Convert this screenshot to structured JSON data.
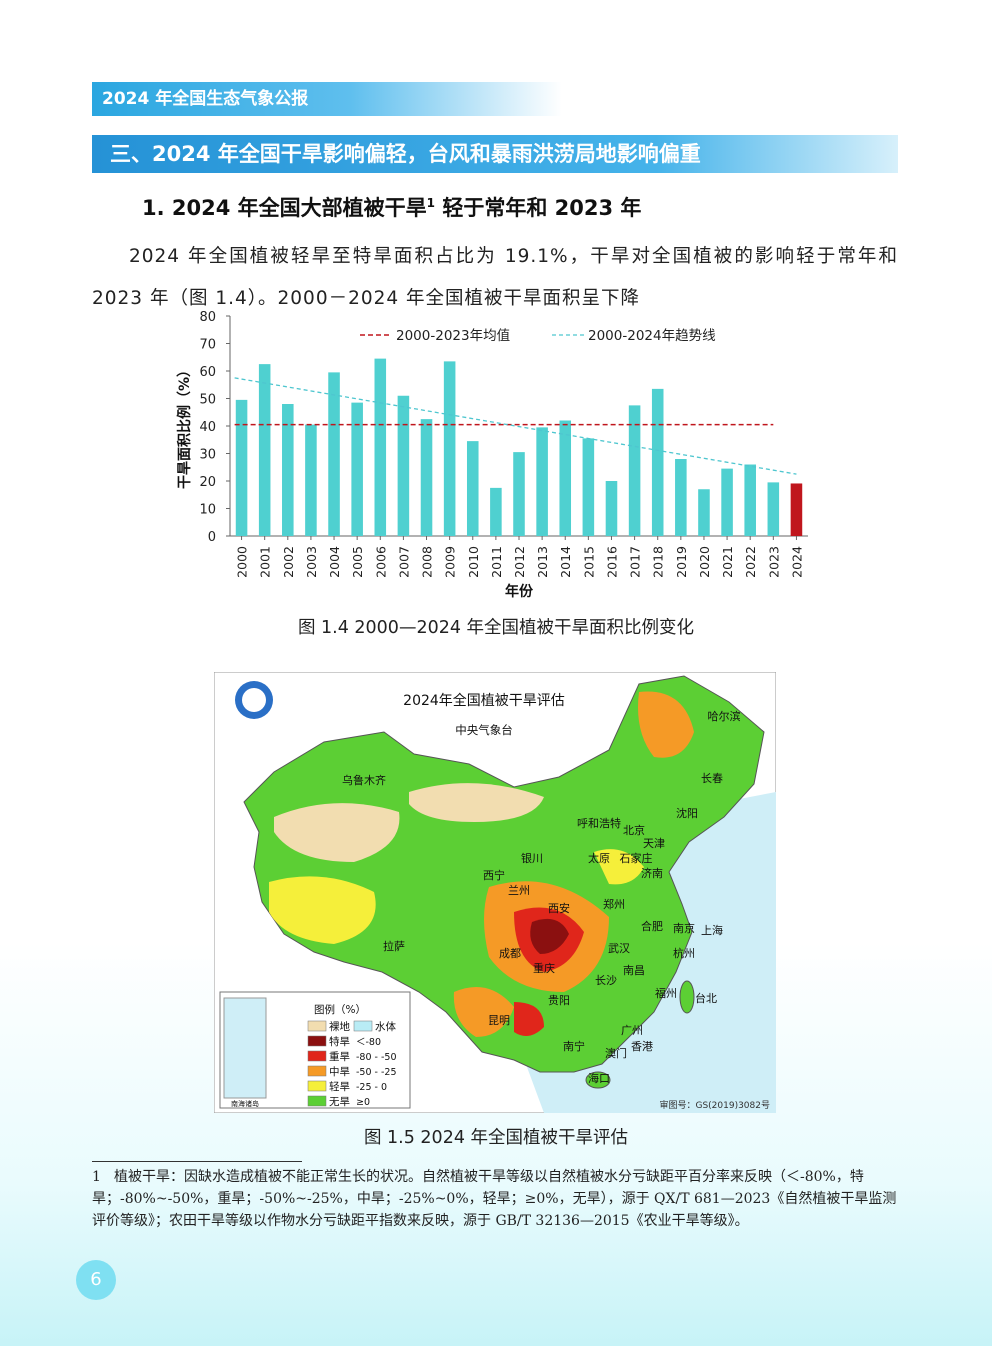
{
  "header": {
    "title": "2024 年全国生态气象公报"
  },
  "section": {
    "title": "三、2024 年全国干旱影响偏轻，台风和暴雨洪涝局地影响偏重"
  },
  "subsection": {
    "title": "1. 2024 年全国大部植被干旱",
    "sup": "1",
    "title_tail": " 轻于常年和 2023 年"
  },
  "paragraph": {
    "text": "2024 年全国植被轻旱至特旱面积占比为 19.1%，干旱对全国植被的影响轻于常年和 2023 年（图 1.4）。2000－2024 年全国植被干旱面积呈下降"
  },
  "chart_data": {
    "type": "bar",
    "categories": [
      "2000",
      "2001",
      "2002",
      "2003",
      "2004",
      "2005",
      "2006",
      "2007",
      "2008",
      "2009",
      "2010",
      "2011",
      "2012",
      "2013",
      "2014",
      "2015",
      "2016",
      "2017",
      "2018",
      "2019",
      "2020",
      "2021",
      "2022",
      "2023",
      "2024"
    ],
    "values": [
      49.5,
      62.5,
      48,
      40.5,
      59.5,
      48.5,
      64.5,
      51,
      42.5,
      63.5,
      34.5,
      17.5,
      30.5,
      39.5,
      42,
      35.5,
      20,
      47.5,
      53.5,
      28,
      17,
      24.5,
      26,
      19.5,
      19.1
    ],
    "ylabel": "干旱面积比例（%）",
    "xlabel": "年份",
    "ylim": [
      0,
      80
    ],
    "yticks": [
      0,
      10,
      20,
      30,
      40,
      50,
      60,
      70,
      80
    ],
    "mean_line": {
      "name": "2000-2023年均值",
      "value": 40.5,
      "color": "#c0161d"
    },
    "trend_line": {
      "name": "2000-2024年趋势线",
      "start": 57.5,
      "end": 22.5,
      "color": "#4ec6cf"
    },
    "bar_color": "#4fd0d0",
    "highlight_color": "#c0161d",
    "highlight_index": 24
  },
  "figure14": {
    "caption": "图 1.4  2000—2024 年全国植被干旱面积比例变化"
  },
  "map": {
    "title": "2024年全国植被干旱评估",
    "subtitle": "中央气象台",
    "cities": [
      {
        "name": "哈尔滨"
      },
      {
        "name": "长春"
      },
      {
        "name": "乌鲁木齐"
      },
      {
        "name": "呼和浩特"
      },
      {
        "name": "北京"
      },
      {
        "name": "沈阳"
      },
      {
        "name": "天津"
      },
      {
        "name": "银川"
      },
      {
        "name": "太原"
      },
      {
        "name": "石家庄"
      },
      {
        "name": "西宁"
      },
      {
        "name": "济南"
      },
      {
        "name": "兰州"
      },
      {
        "name": "郑州"
      },
      {
        "name": "西安"
      },
      {
        "name": "合肥"
      },
      {
        "name": "南京"
      },
      {
        "name": "上海"
      },
      {
        "name": "拉萨"
      },
      {
        "name": "成都"
      },
      {
        "name": "武汉"
      },
      {
        "name": "杭州"
      },
      {
        "name": "重庆"
      },
      {
        "name": "南昌"
      },
      {
        "name": "长沙"
      },
      {
        "name": "福州"
      },
      {
        "name": "贵阳"
      },
      {
        "name": "台北"
      },
      {
        "name": "昆明"
      },
      {
        "name": "广州"
      },
      {
        "name": "南宁"
      },
      {
        "name": "香港"
      },
      {
        "name": "澳门"
      },
      {
        "name": "海口"
      }
    ],
    "legend": {
      "title": "图例（%）",
      "items": [
        {
          "label": "裸地",
          "range": "",
          "color": "#f2ddb0"
        },
        {
          "label": "水体",
          "range": "",
          "color": "#b9ecf5"
        },
        {
          "label": "特旱",
          "range": "＜-80",
          "color": "#8b1010"
        },
        {
          "label": "重旱",
          "range": "-80 - -50",
          "color": "#e0261b"
        },
        {
          "label": "中旱",
          "range": "-50 - -25",
          "color": "#f59a26"
        },
        {
          "label": "轻旱",
          "range": "-25 - 0",
          "color": "#f5ef3a"
        },
        {
          "label": "无旱",
          "range": "≥0",
          "color": "#5ccf34"
        }
      ]
    },
    "inset_label": "南海诸岛",
    "approval": "审图号：GS(2019)3082号"
  },
  "figure15": {
    "caption": "图 1.5  2024 年全国植被干旱评估"
  },
  "footnote": {
    "number": "1",
    "text": "植被干旱：因缺水造成植被不能正常生长的状况。自然植被干旱等级以自然植被水分亏缺距平百分率来反映（＜-80%，特旱；-80%~-50%，重旱；-50%~-25%，中旱；-25%~0%，轻旱；≥0%，无旱），源于 QX/T 681—2023《自然植被干旱监测评价等级》；农田干旱等级以作物水分亏缺距平指数来反映，源于 GB/T 32136—2015《农业干旱等级》。"
  },
  "page": {
    "number": "6"
  }
}
